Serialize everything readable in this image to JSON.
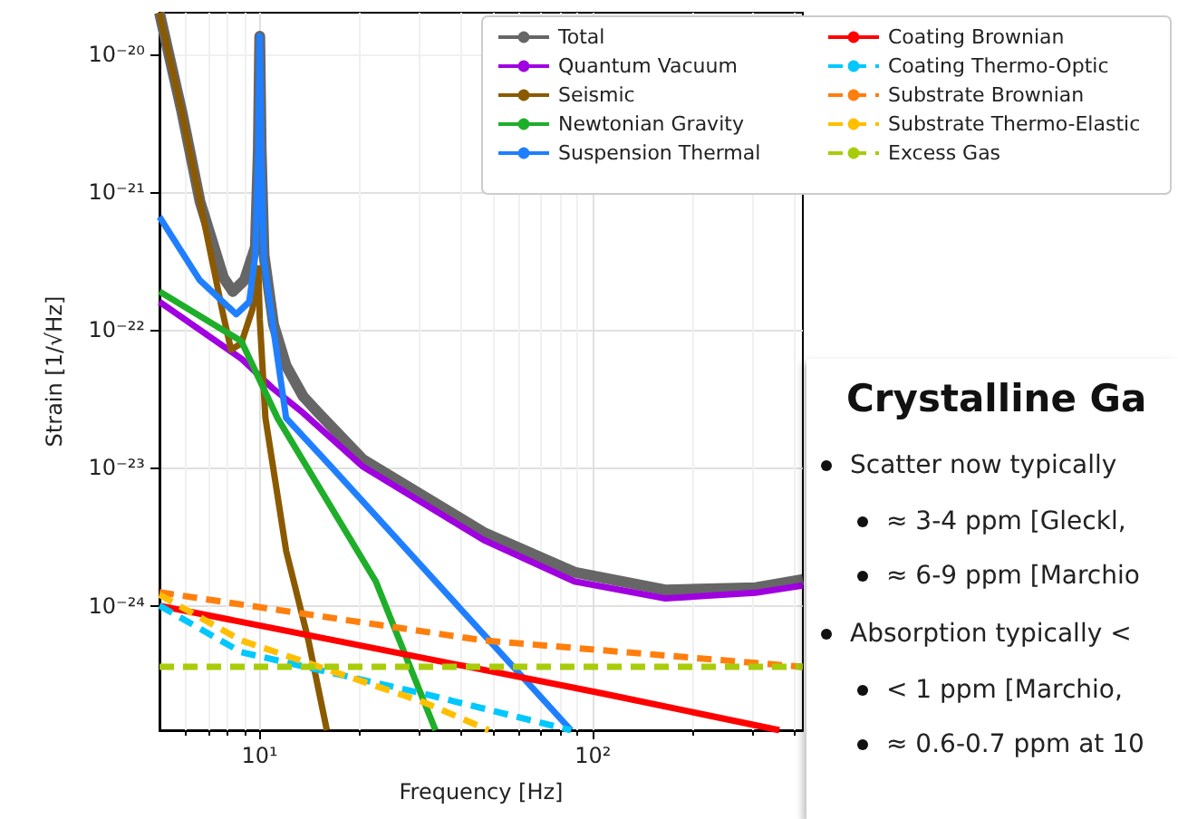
{
  "chart_data": {
    "type": "line",
    "xlabel": "Frequency [Hz]",
    "ylabel": "Strain [1/√Hz]",
    "log": "xy",
    "grid": true,
    "legend": "top right",
    "xlim": [
      5,
      427
    ],
    "ylim": [
      1.25e-25,
      2e-20
    ],
    "xticks": [
      {
        "value": 10,
        "label": "10¹"
      },
      {
        "value": 100,
        "label": "10²"
      }
    ],
    "yticks": [
      {
        "value": 1e-24,
        "label": "10⁻²⁴"
      },
      {
        "value": 1e-23,
        "label": "10⁻²³"
      },
      {
        "value": 1e-22,
        "label": "10⁻²²"
      },
      {
        "value": 1e-21,
        "label": "10⁻²¹"
      },
      {
        "value": 1e-20,
        "label": "10⁻²⁰"
      }
    ],
    "series": [
      {
        "name": "Total",
        "color": "#666666",
        "line_style": "solid",
        "x": [
          5,
          5.84,
          6.62,
          7.78,
          8.3,
          9,
          9.7,
          9.9,
          10,
          10.1,
          10.3,
          11,
          12,
          13.5,
          15,
          20.4,
          47,
          88,
          165,
          308,
          427
        ],
        "values": [
          2e-20,
          3.8e-21,
          8.5e-22,
          2.4e-22,
          1.9e-22,
          2.3e-22,
          4e-22,
          2e-21,
          1.35e-20,
          2e-21,
          3.5e-22,
          1.1e-22,
          5.5e-23,
          3.3e-23,
          2.5e-23,
          1.15e-23,
          3.4e-24,
          1.75e-24,
          1.3e-24,
          1.35e-24,
          1.55e-24
        ]
      },
      {
        "name": "Quantum Vacuum",
        "color": "#a000e0",
        "line_style": "solid",
        "x": [
          5,
          8.8,
          10.9,
          13.5,
          20.4,
          47,
          88,
          165,
          308,
          427
        ],
        "values": [
          1.6e-22,
          6.2e-23,
          3.8e-23,
          2.5e-23,
          1.02e-23,
          3e-24,
          1.5e-24,
          1.13e-24,
          1.24e-24,
          1.4e-24
        ]
      },
      {
        "name": "Seismic",
        "color": "#8b5a00",
        "line_style": "solid",
        "x": [
          5,
          5.84,
          6.62,
          7.78,
          8.2,
          8.8,
          9.5,
          9.9,
          10,
          10.4,
          12,
          14,
          15.9
        ],
        "values": [
          2e-20,
          3.8e-21,
          8.5e-22,
          1.26e-22,
          7.2e-23,
          8e-23,
          1.4e-22,
          2.8e-22,
          1.2e-22,
          2.3e-23,
          2.5e-24,
          5.6e-25,
          1.25e-25
        ]
      },
      {
        "name": "Newtonian Gravity",
        "color": "#1fae2a",
        "line_style": "solid",
        "x": [
          5,
          8.8,
          11.3,
          22.3,
          33.7
        ],
        "values": [
          1.9e-22,
          8.3e-23,
          2.3e-23,
          1.5e-24,
          1.25e-25
        ]
      },
      {
        "name": "Suspension Thermal",
        "color": "#1f7fff",
        "line_style": "solid",
        "x": [
          5,
          6.6,
          8.5,
          9.3,
          9.7,
          9.9,
          10,
          10.1,
          10.3,
          11,
          12,
          16.5,
          47,
          86
        ],
        "values": [
          6.6e-22,
          2.3e-22,
          1.3e-22,
          1.6e-22,
          3.5e-22,
          2e-21,
          1.35e-20,
          2e-21,
          3.2e-22,
          1e-22,
          2.3e-23,
          1e-23,
          6.2e-25,
          1.25e-25
        ]
      },
      {
        "name": "Coating Brownian",
        "color": "#ff0000",
        "line_style": "solid",
        "x": [
          5,
          108,
          363
        ],
        "values": [
          1e-24,
          2.3e-25,
          1.25e-25
        ]
      },
      {
        "name": "Coating Thermo-Optic",
        "color": "#00c8ff",
        "line_style": "dashed",
        "x": [
          5,
          8.8,
          31,
          86
        ],
        "values": [
          1e-24,
          4.6e-25,
          2.3e-25,
          1.25e-25
        ]
      },
      {
        "name": "Substrate Brownian",
        "color": "#ff7f0e",
        "line_style": "dashed",
        "x": [
          5,
          47,
          427
        ],
        "values": [
          1.25e-24,
          5.6e-25,
          3.6e-25
        ]
      },
      {
        "name": "Substrate Thermo-Elastic",
        "color": "#ffbf00",
        "line_style": "dashed",
        "x": [
          5,
          8.8,
          31,
          48.7
        ],
        "values": [
          1.2e-24,
          5.6e-25,
          2e-25,
          1.25e-25
        ]
      },
      {
        "name": "Excess Gas",
        "color": "#a8cc0a",
        "line_style": "dashed",
        "x": [
          5,
          427
        ],
        "values": [
          3.6e-25,
          3.6e-25
        ]
      }
    ],
    "annotations": [
      "Crystalline Ga",
      "Scatter now typically",
      "≈ 3-4 ppm [Gleckl,",
      "≈ 6-9 ppm [Marchio",
      "Absorption typically <",
      "< 1 ppm [Marchio,",
      "≈ 0.6-0.7 ppm at 10"
    ]
  }
}
